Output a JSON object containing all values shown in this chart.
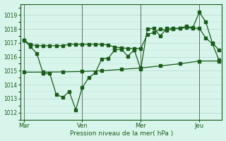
{
  "background_color": "#d8f5ec",
  "grid_color": "#b8ddd0",
  "line_color": "#1a5c1a",
  "marker_color": "#1a5c1a",
  "xlabel": "Pression niveau de la mer( hPa )",
  "ylim": [
    1011.5,
    1019.8
  ],
  "yticks": [
    1012,
    1013,
    1014,
    1015,
    1016,
    1017,
    1018,
    1019
  ],
  "xtick_labels": [
    "Mar",
    "Ven",
    "Mer",
    "Jeu"
  ],
  "xtick_positions": [
    0,
    9,
    18,
    27
  ],
  "vline_positions": [
    0,
    9,
    18,
    27
  ],
  "series_top_x": [
    0,
    1,
    2,
    3,
    4,
    5,
    6,
    7,
    8,
    9,
    10,
    11,
    12,
    13,
    14,
    15,
    16,
    17,
    18,
    19,
    20,
    21,
    22,
    23,
    24,
    25,
    26,
    27,
    28,
    29,
    30
  ],
  "series_top_y": [
    1017.2,
    1016.9,
    1016.8,
    1016.8,
    1016.8,
    1016.8,
    1016.8,
    1016.9,
    1016.9,
    1016.9,
    1016.9,
    1016.9,
    1016.9,
    1016.85,
    1016.7,
    1016.65,
    1016.6,
    1016.6,
    1016.6,
    1017.6,
    1017.75,
    1018.0,
    1017.9,
    1018.0,
    1018.05,
    1018.1,
    1018.05,
    1018.05,
    1017.35,
    1016.95,
    1015.8
  ],
  "series_jagged_x": [
    0,
    1,
    2,
    3,
    4,
    5,
    6,
    7,
    8,
    9,
    10,
    11,
    12,
    13,
    14,
    15,
    16,
    17,
    18,
    19,
    20,
    21,
    22,
    23,
    24,
    25,
    26,
    27,
    28,
    29,
    30
  ],
  "series_jagged_y": [
    1017.2,
    1016.75,
    1016.25,
    1014.8,
    1014.8,
    1013.3,
    1013.1,
    1013.5,
    1012.2,
    1013.8,
    1014.5,
    1014.85,
    1015.85,
    1015.9,
    1016.5,
    1016.55,
    1016.05,
    1016.5,
    1015.1,
    1018.0,
    1018.05,
    1017.5,
    1018.05,
    1018.05,
    1018.05,
    1018.2,
    1018.1,
    1019.2,
    1018.5,
    1017.0,
    1016.5
  ],
  "series_flat_x": [
    0,
    3,
    6,
    9,
    12,
    15,
    18,
    21,
    24,
    27,
    30
  ],
  "series_flat_y": [
    1014.9,
    1014.9,
    1014.92,
    1014.95,
    1015.0,
    1015.1,
    1015.2,
    1015.35,
    1015.5,
    1015.7,
    1015.7
  ]
}
